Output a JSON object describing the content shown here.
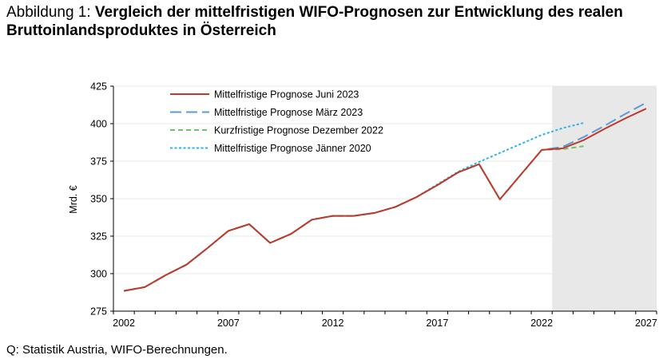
{
  "header": {
    "lead": "Abbildung 1: ",
    "title": "Vergleich der mittelfristigen WIFO-Prognosen zur Entwicklung des realen Bruttoinlandsproduktes in Österreich"
  },
  "footer": {
    "source": "Q: Statistik Austria, WIFO-Berechnungen."
  },
  "chart_data": {
    "type": "line",
    "title": "",
    "xlabel": "",
    "ylabel": "Mrd. €",
    "ylim": [
      275,
      425
    ],
    "yticks": [
      275,
      300,
      325,
      350,
      375,
      400,
      425
    ],
    "xlim": [
      2002,
      2027
    ],
    "xticks": [
      2002,
      2007,
      2012,
      2017,
      2022,
      2027
    ],
    "forecast_shading": {
      "from": 2022.5,
      "to": 2027.5,
      "color": "#e8e8e8"
    },
    "legend_position": "top-left",
    "series": [
      {
        "name": "Mittelfristige Prognose Jänner 2020",
        "color": "#29b5e6",
        "dash": "3,2.5",
        "x": [
          2002,
          2003,
          2004,
          2005,
          2006,
          2007,
          2008,
          2009,
          2010,
          2011,
          2012,
          2013,
          2014,
          2015,
          2016,
          2017,
          2018,
          2019,
          2020,
          2021,
          2022,
          2023,
          2024
        ],
        "y": [
          288.5,
          291,
          299,
          306,
          317,
          328.5,
          333,
          320.5,
          326.5,
          336,
          338.5,
          338.5,
          340.5,
          344.5,
          351,
          359.5,
          368,
          374.5,
          380.5,
          386.5,
          392.5,
          397,
          400.5
        ]
      },
      {
        "name": "Mittelfristige Prognose März 2023",
        "color": "#5b9bd5",
        "dash": "14,6",
        "x": [
          2002,
          2003,
          2004,
          2005,
          2006,
          2007,
          2008,
          2009,
          2010,
          2011,
          2012,
          2013,
          2014,
          2015,
          2016,
          2017,
          2018,
          2019,
          2020,
          2021,
          2022,
          2023,
          2024,
          2025,
          2026,
          2027
        ],
        "y": [
          288.5,
          291,
          299,
          306,
          317,
          328.5,
          333,
          320.5,
          326.5,
          336,
          338.5,
          338.5,
          340.5,
          344.5,
          351,
          359,
          367.5,
          373,
          349.5,
          366,
          382.5,
          384.5,
          391,
          398.5,
          406.5,
          414
        ]
      },
      {
        "name": "Kurzfristige Prognose Dezember 2022",
        "color": "#70c36b",
        "dash": "6,4",
        "x": [
          2002,
          2003,
          2004,
          2005,
          2006,
          2007,
          2008,
          2009,
          2010,
          2011,
          2012,
          2013,
          2014,
          2015,
          2016,
          2017,
          2018,
          2019,
          2020,
          2021,
          2022,
          2023,
          2024
        ],
        "y": [
          288.5,
          291,
          299,
          306,
          317,
          328.5,
          333,
          320.5,
          326.5,
          336,
          338.5,
          338.5,
          340.5,
          344.5,
          351,
          359,
          367.5,
          373,
          349.5,
          366,
          382.5,
          383,
          385
        ]
      },
      {
        "name": "Mittelfristige Prognose Juni 2023",
        "color": "#c0392b",
        "dash": "",
        "x": [
          2002,
          2003,
          2004,
          2005,
          2006,
          2007,
          2008,
          2009,
          2010,
          2011,
          2012,
          2013,
          2014,
          2015,
          2016,
          2017,
          2018,
          2019,
          2020,
          2021,
          2022,
          2023,
          2024,
          2025,
          2026,
          2027
        ],
        "y": [
          288.5,
          291,
          299,
          306,
          317,
          328.5,
          333,
          320.5,
          326.5,
          336,
          338.5,
          338.5,
          340.5,
          344.5,
          351,
          359,
          367.5,
          373,
          349.5,
          366,
          382.5,
          383.5,
          389,
          396.5,
          403.5,
          410
        ]
      }
    ],
    "legend_order": [
      "Mittelfristige Prognose Juni 2023",
      "Mittelfristige Prognose März 2023",
      "Kurzfristige Prognose Dezember 2022",
      "Mittelfristige Prognose Jänner 2020"
    ]
  }
}
